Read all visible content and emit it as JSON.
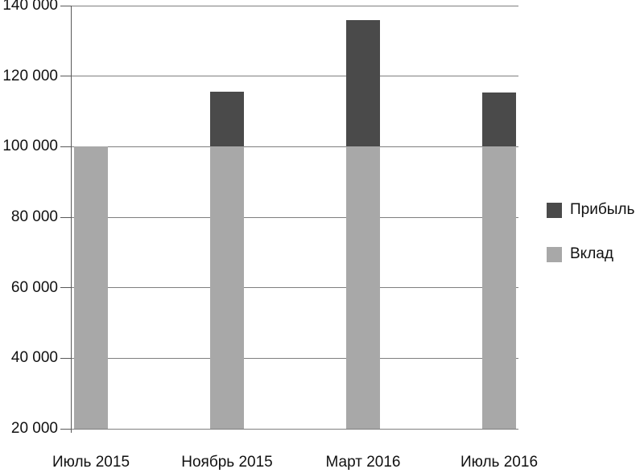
{
  "chart_data": {
    "type": "bar",
    "stacked": true,
    "title": "",
    "xlabel": "",
    "ylabel": "",
    "categories": [
      "Июль 2015",
      "Ноябрь 2015",
      "Март 2016",
      "Июль 2016"
    ],
    "series": [
      {
        "name": "Вклад",
        "color": "#a8a8a8",
        "values": [
          100000,
          100000,
          100000,
          100000
        ]
      },
      {
        "name": "Прибыль",
        "color": "#4a4a4a",
        "values": [
          0,
          15500,
          36000,
          15300
        ]
      }
    ],
    "ylim": [
      20000,
      140000
    ],
    "ytick_step": 20000,
    "ytick_labels": [
      "20 000",
      "40 000",
      "60 000",
      "80 000",
      "100 000",
      "120 000",
      "140 000"
    ],
    "grid": true,
    "legend": {
      "position": "right",
      "entries": [
        {
          "label": "Прибыль",
          "color": "#4a4a4a"
        },
        {
          "label": "Вклад",
          "color": "#a8a8a8"
        }
      ]
    }
  },
  "colors": {
    "background": "#ffffff",
    "gridline": "#7f7f7f",
    "axis": "#595959",
    "text": "#111111"
  }
}
